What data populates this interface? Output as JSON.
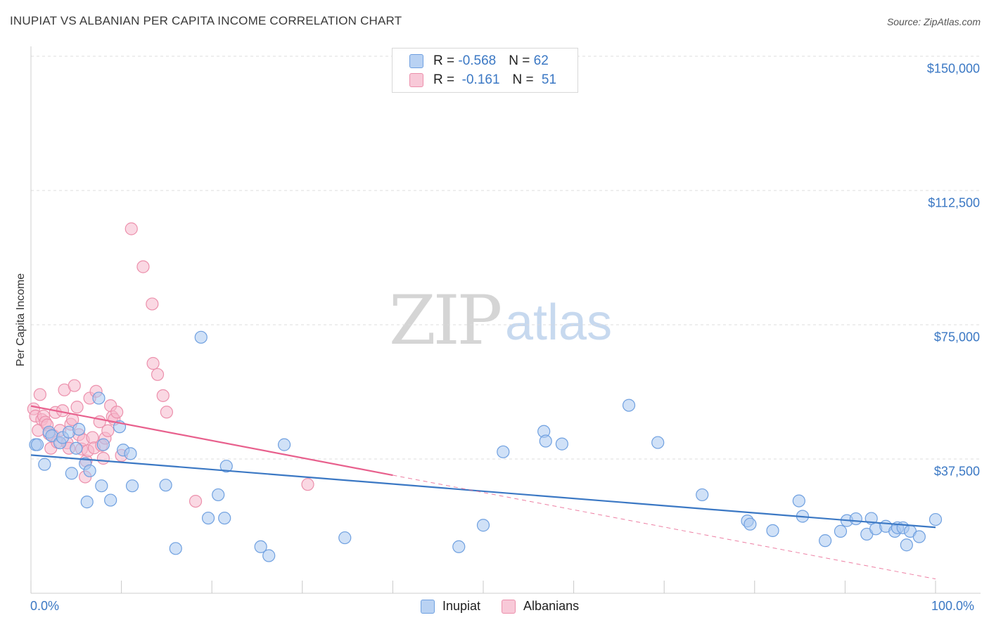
{
  "title": "INUPIAT VS ALBANIAN PER CAPITA INCOME CORRELATION CHART",
  "source": "Source: ZipAtlas.com",
  "watermark": {
    "zip": "ZIP",
    "atlas": "atlas"
  },
  "colors": {
    "blue": "#3b78c4",
    "blue_fill": "#a9c8f0",
    "pink": "#e8608d",
    "pink_fill": "#f5b8cc"
  },
  "legend_top": {
    "r1_label": "R = ",
    "r1_value": "-0.568",
    "n1_label": "N = ",
    "n1_value": "62",
    "r2_label": "R = ",
    "r2_value": " -0.161",
    "n2_label": "N = ",
    "n2_value": "51"
  },
  "legend_bottom": {
    "series1": "Inupiat",
    "series2": "Albanians"
  },
  "chart_data": {
    "type": "scatter",
    "title": "INUPIAT VS ALBANIAN PER CAPITA INCOME CORRELATION CHART",
    "xlabel": "",
    "ylabel": "Per Capita Income",
    "xlim": [
      0,
      100
    ],
    "ylim": [
      0,
      155000
    ],
    "x_tick_labels": [
      "0.0%",
      "100.0%"
    ],
    "y_ticks": [
      {
        "value": 37500,
        "label": "$37,500"
      },
      {
        "value": 75000,
        "label": "$75,000"
      },
      {
        "value": 112500,
        "label": "$112,500"
      },
      {
        "value": 150000,
        "label": "$150,000"
      }
    ],
    "series": [
      {
        "name": "Inupiat",
        "R": -0.568,
        "N": 62,
        "trend": {
          "x": [
            0,
            100
          ],
          "y": [
            38600,
            18400
          ],
          "solid_until": 100
        },
        "points": [
          [
            0.5,
            41500
          ],
          [
            1.5,
            36000
          ],
          [
            2.0,
            45000
          ],
          [
            2.3,
            44000
          ],
          [
            3.2,
            42000
          ],
          [
            3.5,
            43500
          ],
          [
            4.2,
            45000
          ],
          [
            4.5,
            33500
          ],
          [
            5.0,
            40500
          ],
          [
            5.3,
            45800
          ],
          [
            6.0,
            36200
          ],
          [
            6.2,
            25500
          ],
          [
            6.5,
            34200
          ],
          [
            7.5,
            54500
          ],
          [
            7.8,
            30000
          ],
          [
            8.0,
            41500
          ],
          [
            8.8,
            26000
          ],
          [
            9.8,
            46500
          ],
          [
            10.2,
            40000
          ],
          [
            11.0,
            39000
          ],
          [
            11.2,
            30000
          ],
          [
            14.9,
            30200
          ],
          [
            16.0,
            12500
          ],
          [
            18.8,
            71500
          ],
          [
            19.6,
            21000
          ],
          [
            20.7,
            27500
          ],
          [
            21.4,
            21000
          ],
          [
            21.6,
            35500
          ],
          [
            25.4,
            13000
          ],
          [
            26.3,
            10500
          ],
          [
            28.0,
            41500
          ],
          [
            34.7,
            15500
          ],
          [
            47.3,
            13000
          ],
          [
            50.0,
            19000
          ],
          [
            52.2,
            39500
          ],
          [
            56.7,
            45200
          ],
          [
            56.9,
            42500
          ],
          [
            58.7,
            41700
          ],
          [
            66.1,
            52500
          ],
          [
            69.3,
            42100
          ],
          [
            74.2,
            27500
          ],
          [
            79.2,
            20200
          ],
          [
            79.5,
            19300
          ],
          [
            82.0,
            17500
          ],
          [
            84.9,
            25800
          ],
          [
            85.3,
            21500
          ],
          [
            87.8,
            14700
          ],
          [
            89.5,
            17300
          ],
          [
            90.2,
            20300
          ],
          [
            91.2,
            20800
          ],
          [
            92.4,
            16500
          ],
          [
            92.9,
            20900
          ],
          [
            93.4,
            18000
          ],
          [
            94.5,
            18700
          ],
          [
            95.5,
            17300
          ],
          [
            95.8,
            18300
          ],
          [
            96.4,
            18300
          ],
          [
            96.8,
            13500
          ],
          [
            97.2,
            17300
          ],
          [
            98.2,
            15800
          ],
          [
            100.0,
            20600
          ],
          [
            0.7,
            41500
          ]
        ]
      },
      {
        "name": "Albanians",
        "R": -0.161,
        "N": 51,
        "trend": {
          "x": [
            0,
            100
          ],
          "y": [
            52300,
            4000
          ],
          "solid_until": 40
        },
        "points": [
          [
            0.3,
            51500
          ],
          [
            0.5,
            49500
          ],
          [
            0.8,
            45500
          ],
          [
            1.0,
            55500
          ],
          [
            1.2,
            48500
          ],
          [
            1.4,
            49500
          ],
          [
            1.6,
            47800
          ],
          [
            1.8,
            47000
          ],
          [
            2.0,
            44500
          ],
          [
            2.2,
            40500
          ],
          [
            2.5,
            44000
          ],
          [
            2.7,
            50500
          ],
          [
            2.9,
            42200
          ],
          [
            3.2,
            45500
          ],
          [
            3.5,
            51000
          ],
          [
            3.7,
            56800
          ],
          [
            4.0,
            42000
          ],
          [
            4.2,
            40500
          ],
          [
            4.4,
            47200
          ],
          [
            4.6,
            48500
          ],
          [
            4.8,
            58000
          ],
          [
            5.1,
            52000
          ],
          [
            5.3,
            44300
          ],
          [
            5.6,
            40300
          ],
          [
            5.8,
            42800
          ],
          [
            6.0,
            32500
          ],
          [
            6.1,
            37000
          ],
          [
            6.3,
            39800
          ],
          [
            6.5,
            54500
          ],
          [
            6.8,
            43500
          ],
          [
            7.0,
            40600
          ],
          [
            7.2,
            56400
          ],
          [
            7.6,
            47900
          ],
          [
            7.8,
            41300
          ],
          [
            8.0,
            37700
          ],
          [
            8.2,
            43300
          ],
          [
            8.5,
            45400
          ],
          [
            8.8,
            52400
          ],
          [
            9.0,
            49300
          ],
          [
            9.2,
            48600
          ],
          [
            9.5,
            50600
          ],
          [
            10.0,
            38500
          ],
          [
            11.1,
            101800
          ],
          [
            12.4,
            91200
          ],
          [
            13.4,
            80800
          ],
          [
            13.5,
            64200
          ],
          [
            14.0,
            61100
          ],
          [
            14.6,
            55200
          ],
          [
            15.0,
            50600
          ],
          [
            18.2,
            25700
          ],
          [
            30.6,
            30400
          ]
        ]
      }
    ]
  }
}
